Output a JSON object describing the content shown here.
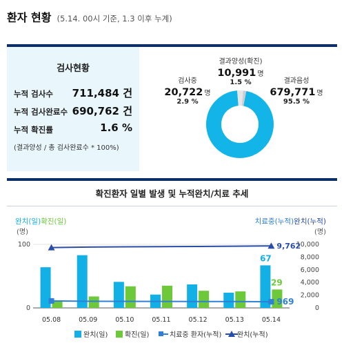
{
  "header": {
    "title": "환자 현황",
    "subtitle": "(5.14. 00시 기준, 1.3 이후 누계)"
  },
  "test_box": {
    "title": "검사현황",
    "rows": [
      {
        "label": "누적 검사수",
        "value": "711,484 건"
      },
      {
        "label": "누적 검사완료수",
        "value": "690,762 건"
      },
      {
        "label": "누적 확진률",
        "value": "1.6 %"
      }
    ],
    "note": "(결과양성 / 총 검사완료수 * 100%)"
  },
  "donut": {
    "positive": {
      "label": "결과양성(확진)",
      "value": "10,991",
      "unit": "명",
      "pct": "1.5 %",
      "share": 1.5,
      "color": "#c9ccd2"
    },
    "testing": {
      "label": "검사중",
      "value": "20,722",
      "unit": "명",
      "pct": "2.9 %",
      "share": 2.9,
      "color": "#e4e6ea"
    },
    "negative": {
      "label": "결과음성",
      "value": "679,771",
      "unit": "명",
      "pct": "95.5 %",
      "share": 95.5,
      "color": "#13b5e8"
    }
  },
  "chart_title": "확진환자 일별 발생 및 누적완치/치료 추세",
  "chart_data": {
    "type": "bar",
    "categories": [
      "05.08",
      "05.09",
      "05.10",
      "05.11",
      "05.12",
      "05.13",
      "05.14"
    ],
    "series": [
      {
        "name": "완치(일)",
        "kind": "bar",
        "axis": "left",
        "color": "#13b0e6",
        "values": [
          64,
          83,
          41,
          21,
          37,
          24,
          67
        ]
      },
      {
        "name": "확진(일)",
        "kind": "bar",
        "axis": "left",
        "color": "#6dc93a",
        "values": [
          12,
          18,
          34,
          35,
          27,
          26,
          29
        ]
      },
      {
        "name": "치료중 환자(누적)",
        "kind": "line",
        "axis": "right",
        "color": "#2f7fd6",
        "values": [
          1100,
          1050,
          1030,
          1020,
          1010,
          1000,
          969
        ]
      },
      {
        "name": "완치(누적)",
        "kind": "line",
        "axis": "right",
        "color": "#2a4da8",
        "values": [
          9500,
          9580,
          9620,
          9640,
          9680,
          9720,
          9762
        ]
      }
    ],
    "labels": [
      {
        "series": 0,
        "index": 6,
        "text": "67"
      },
      {
        "series": 1,
        "index": 6,
        "text": "29"
      },
      {
        "series": 2,
        "index": 6,
        "text": "969"
      },
      {
        "series": 3,
        "index": 6,
        "text": "9,762"
      }
    ],
    "left_axis_legend": {
      "a": "완치(일)",
      "b": "확진(일)",
      "unit": "(명)",
      "ticks": [
        "100",
        "0"
      ]
    },
    "right_axis_legend": {
      "a": "치료중(누적)",
      "b": "완치(누적)",
      "unit": "(명)",
      "ticks": [
        "10,000",
        "8,000",
        "6,000",
        "4,000",
        "2,000",
        "0"
      ]
    },
    "ylim_left": [
      0,
      100
    ],
    "ylim_right": [
      0,
      10000
    ]
  },
  "legend": [
    "완치(일)",
    "확진(일)",
    "치료중 환자(누적)",
    "완치(누적)"
  ]
}
